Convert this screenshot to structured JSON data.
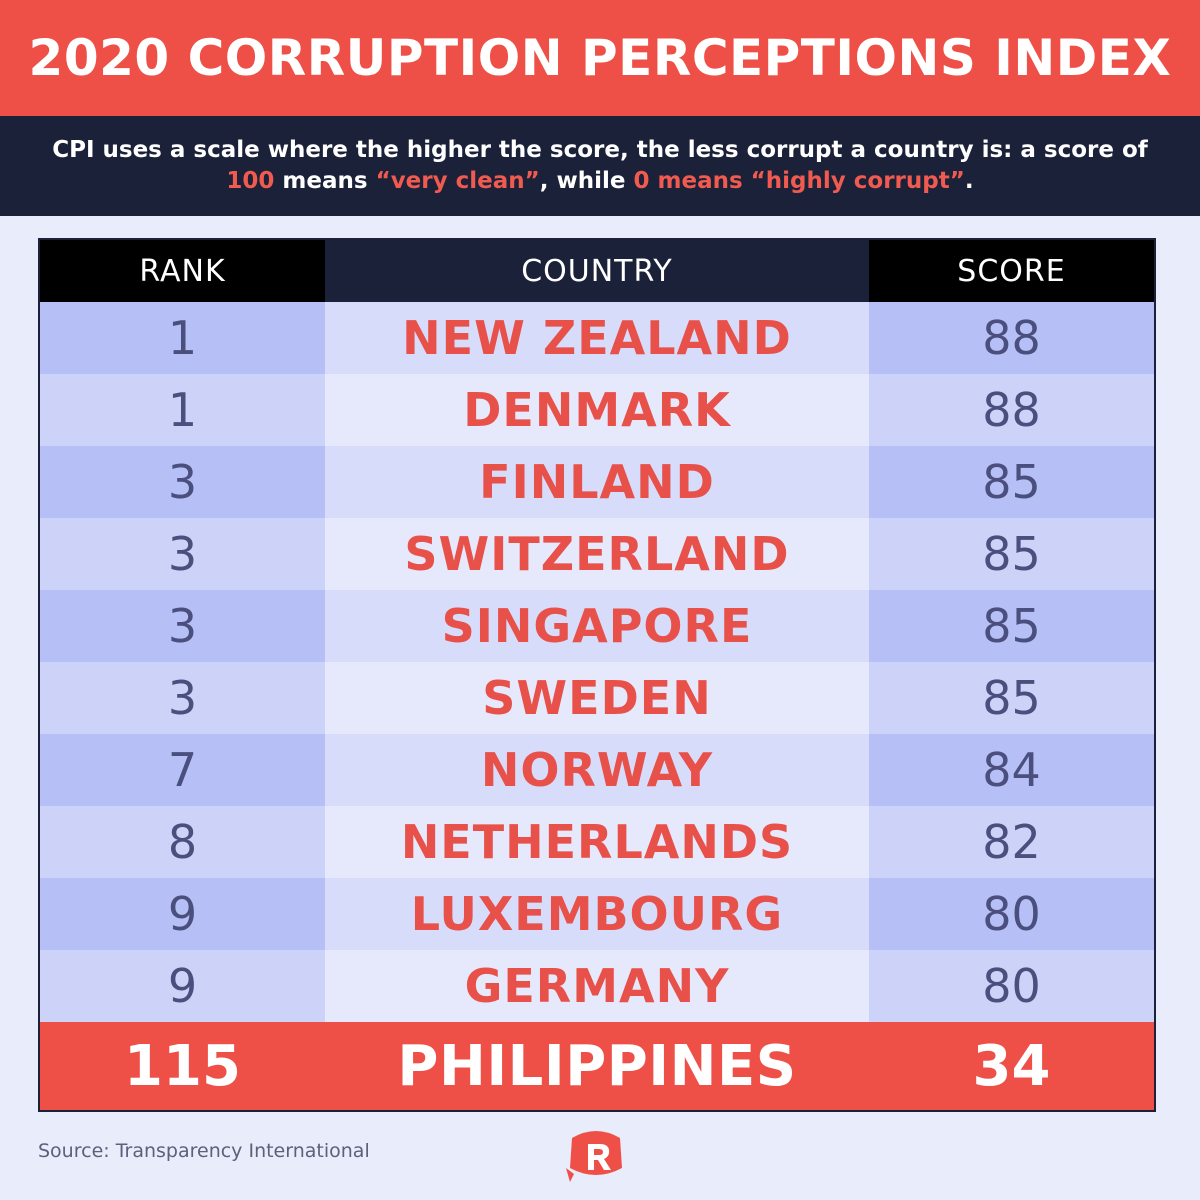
{
  "header": {
    "title": "2020 CORRUPTION PERCEPTIONS INDEX",
    "subtitle_part1": "CPI uses a scale where the higher the score, the less corrupt a country is: a score of ",
    "subtitle_highlight1": "100",
    "subtitle_part2": " means ",
    "subtitle_highlight2": "“very clean”",
    "subtitle_part3": ", while ",
    "subtitle_highlight3": "0 means “highly corrupt”",
    "subtitle_part4": "."
  },
  "table": {
    "columns": [
      "RANK",
      "COUNTRY",
      "SCORE"
    ],
    "rows": [
      {
        "rank": "1",
        "country": "NEW ZEALAND",
        "score": "88"
      },
      {
        "rank": "1",
        "country": "DENMARK",
        "score": "88"
      },
      {
        "rank": "3",
        "country": "FINLAND",
        "score": "85"
      },
      {
        "rank": "3",
        "country": "SWITZERLAND",
        "score": "85"
      },
      {
        "rank": "3",
        "country": "SINGAPORE",
        "score": "85"
      },
      {
        "rank": "3",
        "country": "SWEDEN",
        "score": "85"
      },
      {
        "rank": "7",
        "country": "NORWAY",
        "score": "84"
      },
      {
        "rank": "8",
        "country": "NETHERLANDS",
        "score": "82"
      },
      {
        "rank": "9",
        "country": "LUXEMBOURG",
        "score": "80"
      },
      {
        "rank": "9",
        "country": "GERMANY",
        "score": "80"
      }
    ],
    "highlight": {
      "rank": "115",
      "country": "PHILIPPINES",
      "score": "34"
    }
  },
  "footer": {
    "source": "Source: Transparency International",
    "logo_icon": "rappler-logo-icon"
  },
  "colors": {
    "accent_red": "#ee5048",
    "dark_navy": "#1b2139",
    "background": "#e9ecfb"
  }
}
